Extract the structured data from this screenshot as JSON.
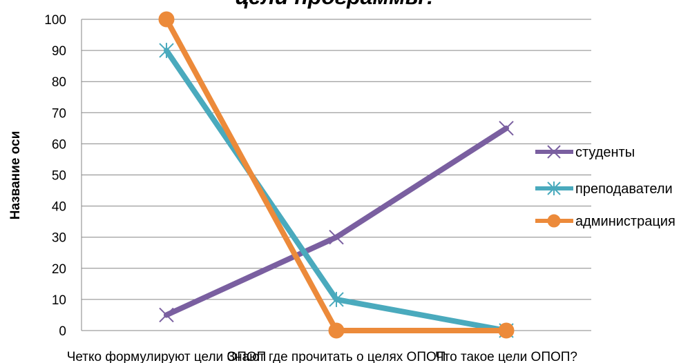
{
  "chart_data": {
    "type": "line",
    "title": "цели программы?",
    "ylabel": "Название оси",
    "xlabel": "",
    "categories": [
      "Четко формулируют цели ОПОП",
      "Знают где прочитать о целях ОПОП",
      "Что такое цели ОПОП?"
    ],
    "ylim": [
      0,
      100
    ],
    "yticks": [
      0,
      10,
      20,
      30,
      40,
      50,
      60,
      70,
      80,
      90,
      100
    ],
    "grid": true,
    "legend_position": "right",
    "series": [
      {
        "name": "студенты",
        "values": [
          5,
          30,
          65
        ],
        "color": "#7a5fa0",
        "marker": "x-cross"
      },
      {
        "name": "преподаватели",
        "values": [
          90,
          10,
          0
        ],
        "color": "#4aaabd",
        "marker": "asterisk"
      },
      {
        "name": "администрация",
        "values": [
          100,
          0,
          0
        ],
        "color": "#ec8a3a",
        "marker": "circle"
      }
    ]
  }
}
